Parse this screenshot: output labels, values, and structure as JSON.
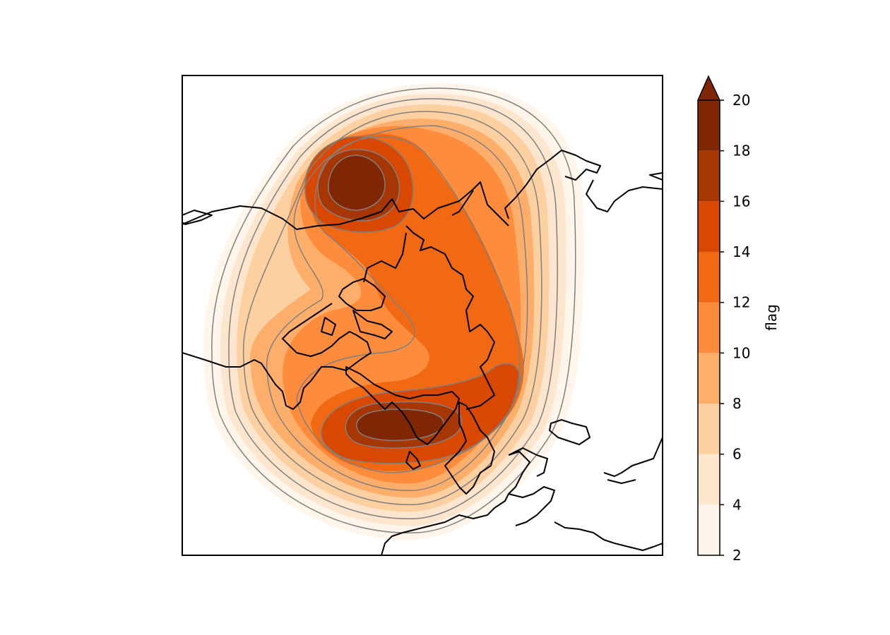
{
  "colorbar": {
    "label": "flag",
    "ticks": [
      "2",
      "4",
      "6",
      "8",
      "10",
      "12",
      "14",
      "16",
      "18",
      "20"
    ],
    "levels": [
      2,
      4,
      6,
      8,
      10,
      12,
      14,
      16,
      18,
      20
    ],
    "extend": "max",
    "colors": [
      "#fff5eb",
      "#fee6ce",
      "#fdd0a2",
      "#fdae6b",
      "#fd8d3c",
      "#f16913",
      "#d94801",
      "#a63603",
      "#7f2704"
    ]
  },
  "map": {
    "projection": "north-polar-stereographic",
    "contour_line_color": "#808080",
    "coastline_color": "#000000"
  }
}
